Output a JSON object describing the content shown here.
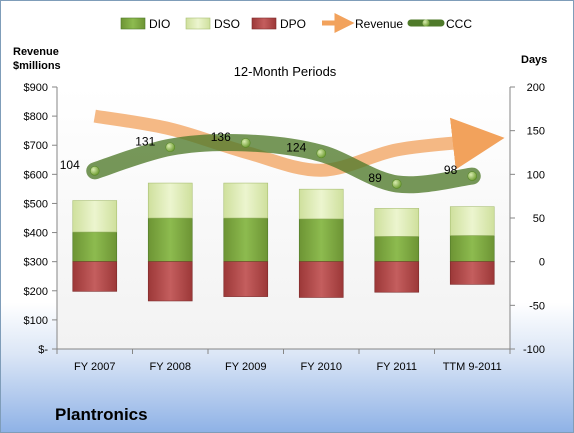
{
  "company": "Plantronics",
  "chart_data": {
    "type": "bar",
    "title": "12-Month Periods",
    "categories": [
      "FY 2007",
      "FY 2008",
      "FY 2009",
      "FY 2010",
      "FY 2011",
      "TTM 9-2011"
    ],
    "left_axis": {
      "label_lines": [
        "Revenue",
        "$millions"
      ],
      "ylim": [
        0,
        900
      ],
      "ticks": [
        "$-",
        "$100",
        "$200",
        "$300",
        "$400",
        "$500",
        "$600",
        "$700",
        "$800",
        "$900"
      ]
    },
    "right_axis": {
      "label": "Days",
      "ylim": [
        -100,
        200
      ],
      "ticks": [
        "-100",
        "-50",
        "0",
        "50",
        "100",
        "150",
        "200"
      ]
    },
    "legend": {
      "position": "top",
      "entries": [
        {
          "name": "DIO",
          "color": "#7fa542"
        },
        {
          "name": "DSO",
          "color": "#e0edbb"
        },
        {
          "name": "DPO",
          "color": "#b54a4a"
        },
        {
          "name": "Revenue",
          "color": "#f2a25c"
        },
        {
          "name": "CCC",
          "color": "#4f7a2a"
        }
      ]
    },
    "series": [
      {
        "name": "DIO",
        "axis": "right",
        "values": [
          34,
          50,
          50,
          49,
          29,
          30
        ]
      },
      {
        "name": "DSO",
        "axis": "right",
        "values": [
          36,
          40,
          40,
          34,
          32,
          33
        ]
      },
      {
        "name": "DPO",
        "axis": "right",
        "values": [
          -34,
          -45,
          -40,
          -41,
          -35,
          -26
        ]
      },
      {
        "name": "Revenue",
        "axis": "left",
        "values": [
          800,
          756,
          676,
          614,
          684,
          713
        ]
      },
      {
        "name": "CCC",
        "axis": "right",
        "values": [
          104,
          131,
          136,
          124,
          89,
          98
        ],
        "labels": [
          "104",
          "131",
          "136",
          "124",
          "89",
          "98"
        ]
      }
    ],
    "grid": false
  }
}
